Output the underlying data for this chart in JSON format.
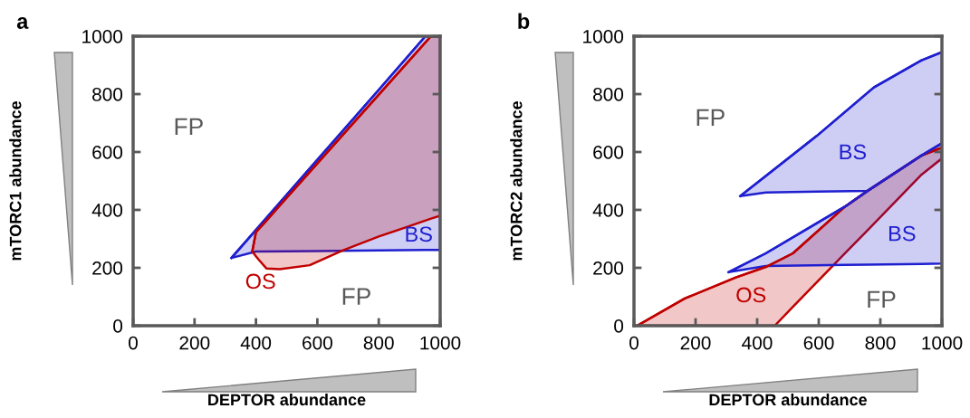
{
  "chart_data": [
    {
      "type": "line",
      "title": "a",
      "xlabel": "DEPTOR abundance",
      "ylabel": "mTORC1 abundance",
      "xlim": [
        0,
        1000
      ],
      "ylim": [
        0,
        1000
      ],
      "xticks": [
        0,
        200,
        400,
        600,
        800,
        1000
      ],
      "yticks": [
        0,
        200,
        400,
        600,
        800,
        1000
      ],
      "grid": false,
      "legend": false,
      "series": [
        {
          "name": "BS",
          "color": "#1f1fd0",
          "x": [
            320,
            400,
            600,
            800,
            952,
            1000
          ],
          "values": [
            234,
            331,
            573,
            815,
            1000,
            1000
          ],
          "upper": [
            234,
            331,
            573,
            815,
            1000,
            1000
          ],
          "lower": [
            234,
            256,
            258,
            260,
            262,
            262
          ]
        },
        {
          "name": "OS",
          "color": "#c00000",
          "x": [
            388,
            400,
            409,
            434,
            478,
            575,
            682,
            800,
            900,
            970,
            1000
          ],
          "values": [
            256,
            323,
            334,
            363,
            416,
            531,
            658,
            798,
            917,
            1000,
            1000
          ],
          "upper": [
            256,
            323,
            334,
            363,
            416,
            531,
            658,
            798,
            917,
            1000,
            1000
          ],
          "lower": [
            256,
            240,
            228,
            198,
            195,
            209,
            260,
            308,
            344,
            370,
            380
          ]
        }
      ],
      "annotations": [
        "FP",
        "FP"
      ]
    },
    {
      "type": "line",
      "title": "b",
      "xlabel": "DEPTOR abundance",
      "ylabel": "mTORC2 abundance",
      "xlim": [
        0,
        1000
      ],
      "ylim": [
        0,
        1000
      ],
      "xticks": [
        0,
        200,
        400,
        600,
        800,
        1000
      ],
      "yticks": [
        0,
        200,
        400,
        600,
        800,
        1000
      ],
      "grid": false,
      "legend": false,
      "series": [
        {
          "name": "OS",
          "color": "#c00000",
          "x": [
            10,
            165,
            331,
            428,
            457,
            516,
            686,
            759,
            934,
            1000
          ],
          "values": [
            0,
            94,
            167,
            203,
            218,
            250,
            412,
            466,
            588,
            615
          ],
          "upper": [
            0,
            94,
            167,
            203,
            218,
            250,
            412,
            466,
            588,
            615
          ],
          "lower": [
            0,
            0,
            0,
            0,
            0,
            65,
            251,
            330,
            522,
            578
          ]
        },
        {
          "name": "BS",
          "color": "#1f1fd0",
          "x": [
            307,
            428,
            686,
            759,
            934,
            1000
          ],
          "values": [
            185,
            250,
            412,
            466,
            588,
            630
          ],
          "upper": [
            185,
            250,
            412,
            466,
            588,
            630
          ],
          "lower": [
            185,
            206,
            210,
            211,
            213,
            215
          ]
        },
        {
          "name": "BS",
          "color": "#1f1fd0",
          "x": [
            345,
            428,
            594,
            759,
            779,
            934,
            1000
          ],
          "values": [
            448,
            517,
            656,
            805,
            823,
            917,
            945
          ],
          "upper": [
            448,
            517,
            656,
            805,
            823,
            917,
            945
          ],
          "lower": [
            448,
            460,
            463,
            466,
            480,
            588,
            630
          ]
        }
      ],
      "annotations": [
        "FP",
        "FP"
      ]
    }
  ]
}
